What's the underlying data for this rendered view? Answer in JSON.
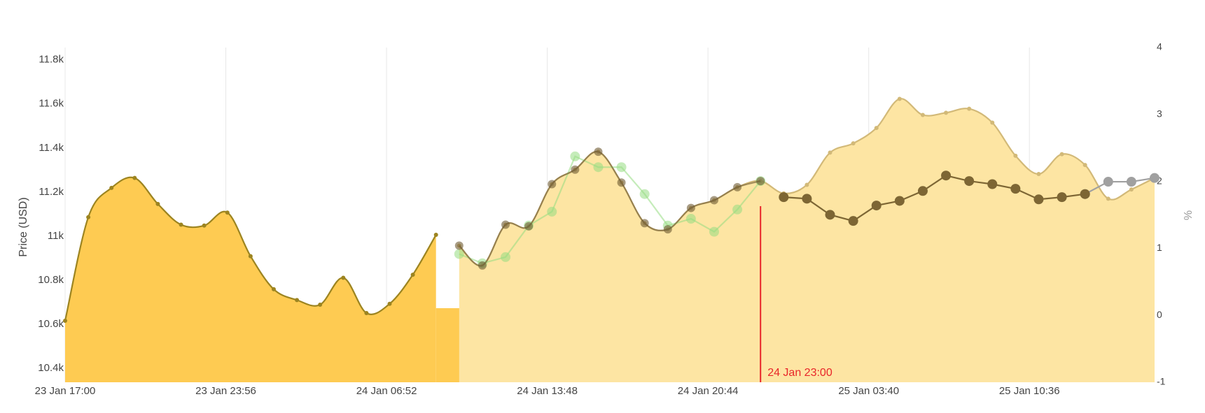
{
  "chart_data": {
    "type": "line",
    "y_label": "Price (USD)",
    "y2_label": "%",
    "xlim": [
      "23 Jan 17:00",
      "25 Jan 16:00"
    ],
    "xticks": [
      "23 Jan 17:00",
      "23 Jan 23:56",
      "24 Jan 06:52",
      "24 Jan 13:48",
      "24 Jan 20:44",
      "25 Jan 03:40",
      "25 Jan 10:36"
    ],
    "ylim": [
      10337,
      11856
    ],
    "yticks": [
      {
        "value": 10400,
        "label": "10.4k"
      },
      {
        "value": 10600,
        "label": "10.6k"
      },
      {
        "value": 10800,
        "label": "10.8k"
      },
      {
        "value": 11000,
        "label": "11k"
      },
      {
        "value": 11200,
        "label": "11.2k"
      },
      {
        "value": 11400,
        "label": "11.4k"
      },
      {
        "value": 11600,
        "label": "11.6k"
      },
      {
        "value": 11800,
        "label": "11.8k"
      }
    ],
    "y2lim": [
      -1,
      4
    ],
    "y2ticks": [
      -1,
      0,
      1,
      2,
      3,
      4
    ],
    "grid": true,
    "series": [
      {
        "color": "#9c8420",
        "fill_color": "#fecb52",
        "shape": "spline",
        "marker_size": 3,
        "x": [
          "23 Jan 17:00",
          "23 Jan 18:00",
          "23 Jan 19:00",
          "23 Jan 20:00",
          "23 Jan 21:00",
          "23 Jan 22:00",
          "23 Jan 23:00",
          "24 Jan 00:00",
          "24 Jan 01:00",
          "24 Jan 02:00",
          "24 Jan 03:00",
          "24 Jan 04:00",
          "24 Jan 05:00",
          "24 Jan 06:00",
          "24 Jan 07:00",
          "24 Jan 08:00",
          "24 Jan 09:00"
        ],
        "values": [
          10616,
          11086,
          11219,
          11264,
          11146,
          11052,
          11048,
          11107,
          10909,
          10759,
          10710,
          10689,
          10811,
          10651,
          10693,
          10825,
          11006
        ]
      },
      {
        "color": "#d2b978",
        "fill_color": "#fde5a3",
        "shape": "spline",
        "marker_size": 3,
        "x": [
          "24 Jan 10:00",
          "24 Jan 11:00",
          "24 Jan 12:00",
          "24 Jan 13:00",
          "24 Jan 14:00",
          "24 Jan 15:00",
          "24 Jan 16:00",
          "24 Jan 17:00",
          "24 Jan 18:00",
          "24 Jan 19:00",
          "24 Jan 20:00",
          "24 Jan 21:00",
          "24 Jan 22:00",
          "24 Jan 23:00",
          "25 Jan 00:00",
          "25 Jan 01:00",
          "25 Jan 02:00",
          "25 Jan 03:00",
          "25 Jan 04:00",
          "25 Jan 05:00",
          "25 Jan 06:00",
          "25 Jan 07:00",
          "25 Jan 08:00",
          "25 Jan 09:00",
          "25 Jan 10:00",
          "25 Jan 11:00",
          "25 Jan 12:00",
          "25 Jan 13:00",
          "25 Jan 14:00",
          "25 Jan 15:00",
          "25 Jan 16:00"
        ],
        "values": [
          10957,
          10867,
          11052,
          11045,
          11236,
          11302,
          11383,
          11243,
          11059,
          11031,
          11128,
          11163,
          11222,
          11250,
          11194,
          11233,
          11379,
          11421,
          11491,
          11623,
          11550,
          11560,
          11578,
          11515,
          11365,
          11282,
          11372,
          11323,
          11170,
          11212,
          11264
        ]
      },
      {
        "color": "rgba(150,220,130,0.55)",
        "shape": "linear",
        "marker_size": 7,
        "x": [
          "24 Jan 10:00",
          "24 Jan 11:00",
          "24 Jan 12:00",
          "24 Jan 13:00",
          "24 Jan 14:00",
          "24 Jan 15:00",
          "24 Jan 16:00",
          "24 Jan 17:00",
          "24 Jan 18:00",
          "24 Jan 19:00",
          "24 Jan 20:00",
          "24 Jan 21:00",
          "24 Jan 22:00",
          "24 Jan 23:00"
        ],
        "values": [
          10919,
          10877,
          10905,
          11048,
          11111,
          11362,
          11313,
          11313,
          11191,
          11048,
          11079,
          11020,
          11121,
          11250
        ]
      },
      {
        "color": "rgba(110,90,50,0.6)",
        "shape": "spline",
        "marker_size": 6,
        "x": [
          "24 Jan 10:00",
          "24 Jan 11:00",
          "24 Jan 12:00",
          "24 Jan 13:00",
          "24 Jan 14:00",
          "24 Jan 15:00",
          "24 Jan 16:00",
          "24 Jan 17:00",
          "24 Jan 18:00",
          "24 Jan 19:00",
          "24 Jan 20:00",
          "24 Jan 21:00",
          "24 Jan 22:00",
          "24 Jan 23:00"
        ],
        "values": [
          10957,
          10867,
          11052,
          11045,
          11236,
          11302,
          11383,
          11243,
          11059,
          11031,
          11128,
          11163,
          11222,
          11250
        ]
      },
      {
        "color": "#a0a0a0",
        "shape": "linear",
        "marker_size": 7,
        "x": [
          "25 Jan 13:00",
          "25 Jan 14:00",
          "25 Jan 15:00",
          "25 Jan 16:00"
        ],
        "values": [
          11191,
          11247,
          11247,
          11264
        ]
      },
      {
        "color": "#7d6634",
        "shape": "linear",
        "marker_size": 7,
        "x": [
          "25 Jan 00:00",
          "25 Jan 01:00",
          "25 Jan 02:00",
          "25 Jan 03:00",
          "25 Jan 04:00",
          "25 Jan 05:00",
          "25 Jan 06:00",
          "25 Jan 07:00",
          "25 Jan 08:00",
          "25 Jan 09:00",
          "25 Jan 10:00",
          "25 Jan 11:00",
          "25 Jan 12:00",
          "25 Jan 13:00"
        ],
        "values": [
          11177,
          11170,
          11097,
          11069,
          11139,
          11160,
          11205,
          11275,
          11250,
          11236,
          11215,
          11167,
          11177,
          11191
        ]
      }
    ],
    "annotations": [
      {
        "x": "24 Jan 23:00",
        "text": "24 Jan 23:00",
        "color": "#e8262a"
      }
    ]
  }
}
